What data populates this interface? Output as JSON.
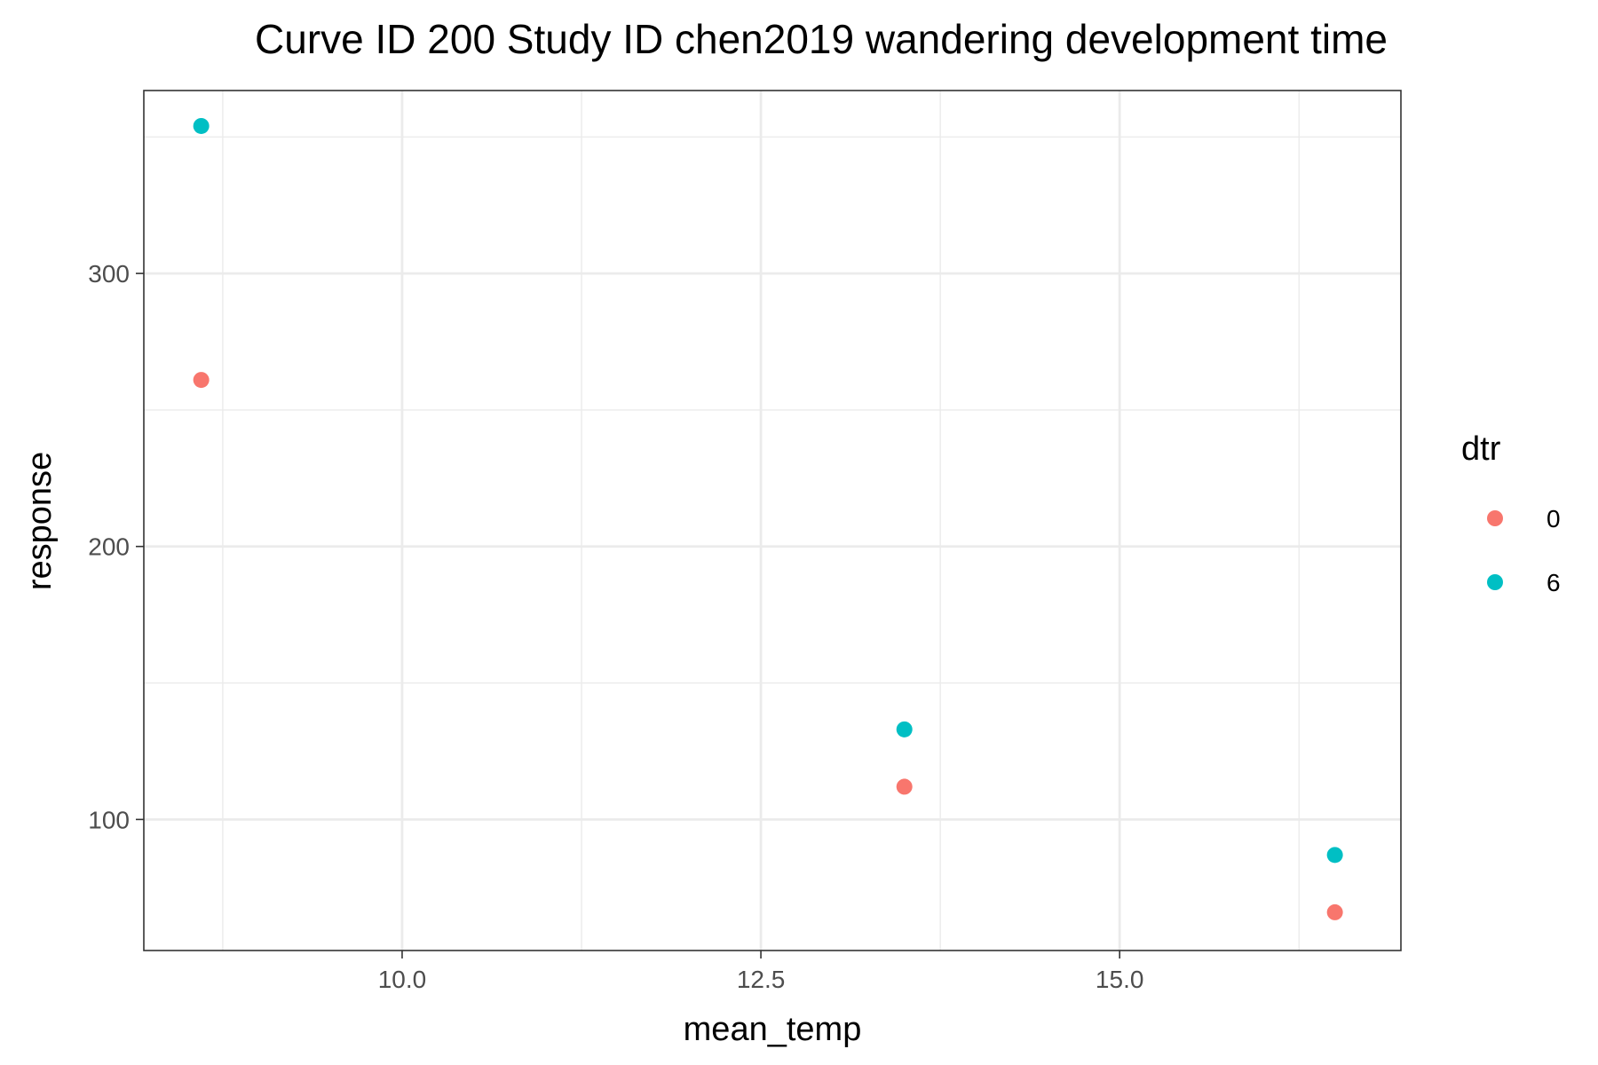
{
  "chart_data": {
    "type": "scatter",
    "title": "Curve ID 200 Study ID chen2019 wandering development time",
    "xlabel": "mean_temp",
    "ylabel": "response",
    "xlim": [
      8.2,
      16.96
    ],
    "ylim": [
      52,
      367
    ],
    "x_ticks": [
      10.0,
      12.5,
      15.0
    ],
    "x_tick_labels": [
      "10.0",
      "12.5",
      "15.0"
    ],
    "y_ticks": [
      100,
      200,
      300
    ],
    "y_tick_labels": [
      "100",
      "200",
      "300"
    ],
    "grid": true,
    "legend": {
      "title": "dtr",
      "position": "right"
    },
    "series": [
      {
        "name": "0",
        "color": "#F8766D",
        "points": [
          {
            "x": 8.6,
            "y": 261
          },
          {
            "x": 13.5,
            "y": 112
          },
          {
            "x": 16.5,
            "y": 66
          }
        ]
      },
      {
        "name": "6",
        "color": "#00BFC4",
        "points": [
          {
            "x": 8.6,
            "y": 354
          },
          {
            "x": 13.5,
            "y": 133
          },
          {
            "x": 16.5,
            "y": 87
          }
        ]
      }
    ]
  }
}
